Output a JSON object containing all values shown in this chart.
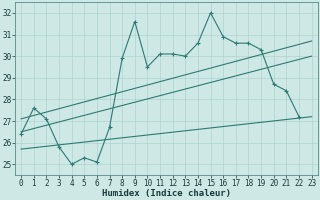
{
  "xlabel": "Humidex (Indice chaleur)",
  "xlim": [
    -0.5,
    23.5
  ],
  "ylim": [
    24.5,
    32.5
  ],
  "yticks": [
    25,
    26,
    27,
    28,
    29,
    30,
    31,
    32
  ],
  "xticks": [
    0,
    1,
    2,
    3,
    4,
    5,
    6,
    7,
    8,
    9,
    10,
    11,
    12,
    13,
    14,
    15,
    16,
    17,
    18,
    19,
    20,
    21,
    22,
    23
  ],
  "background_color": "#cde8e5",
  "grid_color": "#aed4d0",
  "line_color": "#2d7a72",
  "curve1_x": [
    0,
    1,
    2,
    3,
    4,
    5,
    6,
    7,
    8,
    9,
    10,
    11,
    12,
    13,
    14,
    15,
    16,
    17,
    18,
    19,
    20,
    21,
    22
  ],
  "curve1_y": [
    26.4,
    27.6,
    27.1,
    25.8,
    25.0,
    25.3,
    25.1,
    26.7,
    29.9,
    31.6,
    29.5,
    30.1,
    30.1,
    30.0,
    30.6,
    32.0,
    30.9,
    30.6,
    30.6,
    30.3,
    28.7,
    28.4,
    27.2
  ],
  "curve2_x": [
    0,
    23
  ],
  "curve2_y": [
    27.1,
    30.7
  ],
  "curve3_x": [
    0,
    23
  ],
  "curve3_y": [
    26.5,
    30.0
  ],
  "curve4_x": [
    0,
    23
  ],
  "curve4_y": [
    25.7,
    27.2
  ],
  "tick_fontsize": 5.5,
  "xlabel_fontsize": 6.5
}
